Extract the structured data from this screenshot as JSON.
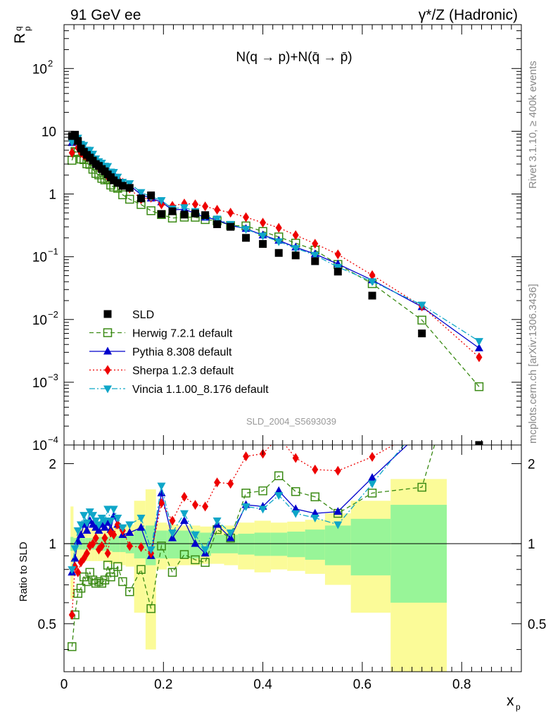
{
  "header": {
    "left_label": "91 GeV ee",
    "right_label": "γ*/Z (Hadronic)",
    "y_label_main": "R",
    "y_label_sup": "q",
    "y_label_sub": "p",
    "plot_title": "N(q → p)+N(q̄ → p̄)",
    "analysis_id": "SLD_2004_S5693039",
    "side_text_top": "Rivet 3.1.10, ≥ 400k events",
    "side_text_bottom": "mcplots.cern.ch [arXiv:1306.3436]",
    "ratio_label": "Ratio to SLD",
    "x_label": "x",
    "x_label_sub": "p"
  },
  "colors": {
    "data": "#000000",
    "herwig": "#3a8a14",
    "pythia": "#0000cc",
    "sherpa": "#ee0000",
    "vincia": "#0fa6c8",
    "band_inner": "#98f598",
    "band_outer": "#fbfb98"
  },
  "chart_data": {
    "type": "scatter",
    "xlim": [
      0,
      0.92
    ],
    "main_ylim": [
      0.0001,
      500
    ],
    "main_yscale": "log",
    "main_yticks": [
      {
        "v": 0.0001,
        "base": "10",
        "exp": "−4"
      },
      {
        "v": 0.001,
        "base": "10",
        "exp": "−3"
      },
      {
        "v": 0.01,
        "base": "10",
        "exp": "−2"
      },
      {
        "v": 0.1,
        "base": "10",
        "exp": "−1"
      },
      {
        "v": 1,
        "base": "1",
        "exp": ""
      },
      {
        "v": 10,
        "base": "10",
        "exp": ""
      },
      {
        "v": 100,
        "base": "10",
        "exp": "2"
      }
    ],
    "ratio_ylim": [
      0.33,
      2.35
    ],
    "ratio_yscale": "log",
    "ratio_yticks": [
      {
        "v": 0.5,
        "label": "0.5"
      },
      {
        "v": 1,
        "label": "1"
      },
      {
        "v": 2,
        "label": "2"
      }
    ],
    "xticks": [
      {
        "v": 0,
        "label": "0"
      },
      {
        "v": 0.2,
        "label": "0.2"
      },
      {
        "v": 0.4,
        "label": "0.4"
      },
      {
        "v": 0.6,
        "label": "0.6"
      },
      {
        "v": 0.8,
        "label": "0.8"
      }
    ],
    "x": [
      0.016,
      0.022,
      0.028,
      0.034,
      0.04,
      0.046,
      0.052,
      0.058,
      0.064,
      0.07,
      0.076,
      0.082,
      0.088,
      0.094,
      0.1,
      0.108,
      0.118,
      0.132,
      0.155,
      0.175,
      0.196,
      0.218,
      0.242,
      0.264,
      0.284,
      0.308,
      0.335,
      0.366,
      0.4,
      0.432,
      0.466,
      0.505,
      0.551,
      0.62,
      0.72,
      0.835
    ],
    "bins": [
      [
        0.013,
        0.019
      ],
      [
        0.019,
        0.025
      ],
      [
        0.025,
        0.031
      ],
      [
        0.031,
        0.037
      ],
      [
        0.037,
        0.043
      ],
      [
        0.043,
        0.049
      ],
      [
        0.049,
        0.055
      ],
      [
        0.055,
        0.061
      ],
      [
        0.061,
        0.067
      ],
      [
        0.067,
        0.073
      ],
      [
        0.073,
        0.079
      ],
      [
        0.079,
        0.085
      ],
      [
        0.085,
        0.091
      ],
      [
        0.091,
        0.097
      ],
      [
        0.097,
        0.104
      ],
      [
        0.104,
        0.113
      ],
      [
        0.113,
        0.124
      ],
      [
        0.124,
        0.141
      ],
      [
        0.141,
        0.164
      ],
      [
        0.164,
        0.185
      ],
      [
        0.185,
        0.207
      ],
      [
        0.207,
        0.23
      ],
      [
        0.23,
        0.253
      ],
      [
        0.253,
        0.274
      ],
      [
        0.274,
        0.296
      ],
      [
        0.296,
        0.322
      ],
      [
        0.322,
        0.35
      ],
      [
        0.35,
        0.383
      ],
      [
        0.383,
        0.416
      ],
      [
        0.416,
        0.449
      ],
      [
        0.449,
        0.485
      ],
      [
        0.485,
        0.525
      ],
      [
        0.525,
        0.577
      ],
      [
        0.577,
        0.657
      ],
      [
        0.657,
        0.77
      ],
      [
        0.77,
        0.9
      ]
    ],
    "data_y": [
      8.4,
      8.8,
      7.0,
      5.3,
      4.7,
      4.2,
      3.8,
      3.4,
      3.0,
      2.8,
      2.5,
      2.3,
      2.05,
      1.85,
      1.65,
      1.5,
      1.35,
      1.25,
      0.85,
      0.95,
      0.48,
      0.53,
      0.47,
      0.49,
      0.46,
      0.33,
      0.3,
      0.2,
      0.16,
      0.115,
      0.105,
      0.085,
      0.058,
      0.024,
      0.006,
      0.0001
    ],
    "band_inner": [
      0.06,
      0.05,
      0.05,
      0.05,
      0.05,
      0.05,
      0.05,
      0.05,
      0.05,
      0.06,
      0.06,
      0.06,
      0.06,
      0.06,
      0.07,
      0.07,
      0.07,
      0.08,
      0.12,
      0.17,
      0.12,
      0.12,
      0.12,
      0.12,
      0.1,
      0.08,
      0.08,
      0.09,
      0.1,
      0.1,
      0.11,
      0.13,
      0.17,
      0.24,
      0.4,
      0
    ],
    "band_outer": [
      0.38,
      0.15,
      0.14,
      0.14,
      0.14,
      0.14,
      0.14,
      0.14,
      0.14,
      0.14,
      0.14,
      0.15,
      0.15,
      0.16,
      0.16,
      0.16,
      0.17,
      0.18,
      0.45,
      0.6,
      0.2,
      0.18,
      0.17,
      0.17,
      0.16,
      0.16,
      0.17,
      0.2,
      0.22,
      0.2,
      0.21,
      0.23,
      0.3,
      0.45,
      0.75,
      0
    ],
    "series": [
      {
        "name": "SLD",
        "key": "data",
        "marker": "square-filled",
        "line": "none"
      },
      {
        "name": "Herwig 7.2.1 default",
        "key": "herwig",
        "marker": "square-open",
        "line": "dash",
        "ratio": [
          0.41,
          0.54,
          0.65,
          0.68,
          0.75,
          0.72,
          0.78,
          0.73,
          0.71,
          0.72,
          0.71,
          0.73,
          0.83,
          0.75,
          0.78,
          0.82,
          0.72,
          0.66,
          0.8,
          0.57,
          0.98,
          0.78,
          0.91,
          0.87,
          0.85,
          1.13,
          1.05,
          1.55,
          1.58,
          1.8,
          1.57,
          1.5,
          1.3,
          1.55,
          1.63,
          8.5
        ]
      },
      {
        "name": "Pythia 8.308 default",
        "key": "pythia",
        "marker": "triangle-up",
        "line": "solid",
        "ratio": [
          0.78,
          0.88,
          1.02,
          1.08,
          1.18,
          1.12,
          1.22,
          1.18,
          1.15,
          1.12,
          1.18,
          1.15,
          1.2,
          1.13,
          1.27,
          1.18,
          1.08,
          1.1,
          1.15,
          0.9,
          1.55,
          1.05,
          1.22,
          1.0,
          0.92,
          1.18,
          1.05,
          1.4,
          1.38,
          1.58,
          1.35,
          1.3,
          1.32,
          1.77,
          2.65,
          35.0
        ]
      },
      {
        "name": "Sherpa 1.2.3 default",
        "key": "sherpa",
        "marker": "diamond",
        "line": "dot",
        "ratio": [
          0.54,
          0.82,
          0.78,
          0.85,
          0.88,
          0.92,
          0.98,
          1.0,
          1.05,
          0.95,
          0.98,
          1.05,
          0.92,
          1.1,
          1.08,
          1.18,
          1.12,
          0.98,
          0.97,
          0.92,
          1.42,
          1.22,
          1.5,
          1.4,
          1.38,
          1.7,
          1.68,
          2.13,
          2.18,
          2.52,
          2.1,
          1.9,
          1.88,
          2.12,
          2.7,
          25.0
        ]
      },
      {
        "name": "Vincia 1.1.00_8.176 default",
        "key": "vincia",
        "marker": "triangle-down",
        "line": "dashdot",
        "ratio": [
          0.8,
          0.96,
          1.12,
          1.18,
          1.28,
          1.2,
          1.32,
          1.28,
          1.22,
          1.18,
          1.25,
          1.22,
          1.35,
          1.22,
          1.35,
          1.25,
          1.15,
          1.18,
          1.25,
          0.95,
          1.65,
          1.1,
          1.3,
          1.08,
          0.95,
          1.22,
          1.1,
          1.38,
          1.35,
          1.52,
          1.3,
          1.25,
          1.18,
          1.68,
          2.85,
          45.0
        ]
      }
    ]
  }
}
